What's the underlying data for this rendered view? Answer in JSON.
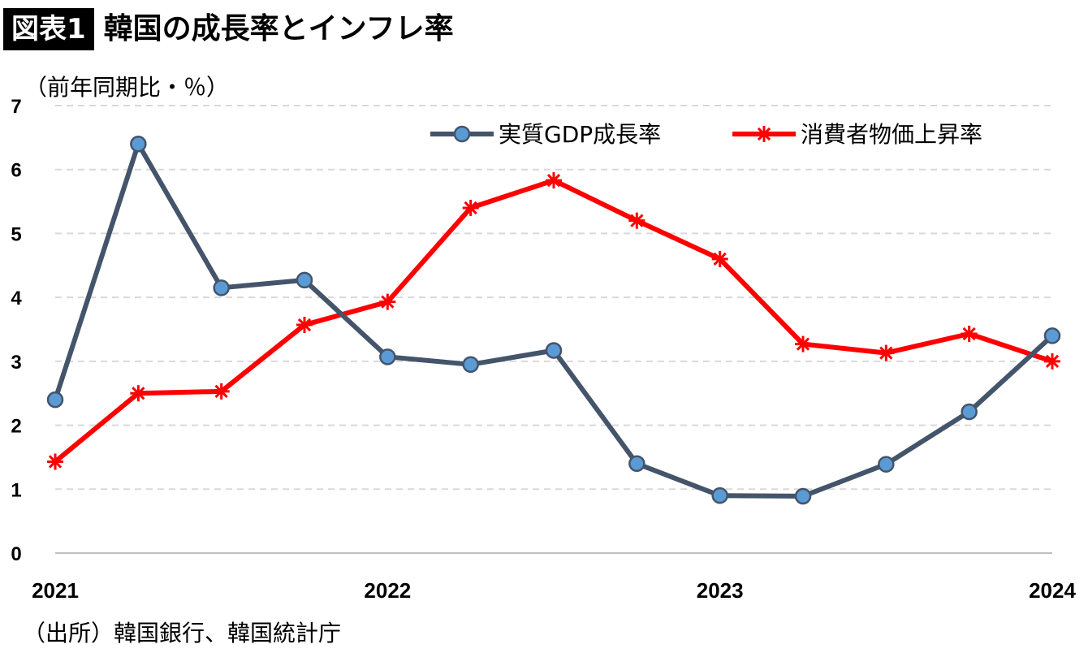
{
  "header": {
    "badge": "図表1",
    "title": "韓国の成長率とインフレ率"
  },
  "unit_label": "（前年同期比・％）",
  "source": "（出所）韓国銀行、韓国統計庁",
  "colors": {
    "gdp_line": "#44546a",
    "gdp_marker": "#5b9bd5",
    "cpi": "#ff0000",
    "grid": "#d9d9d9"
  },
  "chart_data": {
    "type": "line",
    "title": "韓国の成長率とインフレ率",
    "ylabel": "（前年同期比・％）",
    "xlabel": "",
    "ylim": [
      0,
      7
    ],
    "yticks": [
      "0",
      "1",
      "2",
      "3",
      "4",
      "5",
      "6",
      "7"
    ],
    "x_tick_labels": [
      {
        "label": "2021",
        "index": 0
      },
      {
        "label": "2022",
        "index": 4
      },
      {
        "label": "2023",
        "index": 8
      },
      {
        "label": "2024",
        "index": 12
      }
    ],
    "grid": true,
    "legend_position": "top-right",
    "series": [
      {
        "name": "実質GDP成長率",
        "marker": "circle",
        "values": [
          2.4,
          6.4,
          4.15,
          4.27,
          3.07,
          2.95,
          3.17,
          1.4,
          0.9,
          0.89,
          1.39,
          2.21,
          3.4
        ]
      },
      {
        "name": "消費者物価上昇率",
        "marker": "star",
        "values": [
          1.43,
          2.5,
          2.53,
          3.57,
          3.93,
          5.4,
          5.83,
          5.2,
          4.6,
          3.27,
          3.13,
          3.43,
          3.0
        ]
      }
    ]
  }
}
